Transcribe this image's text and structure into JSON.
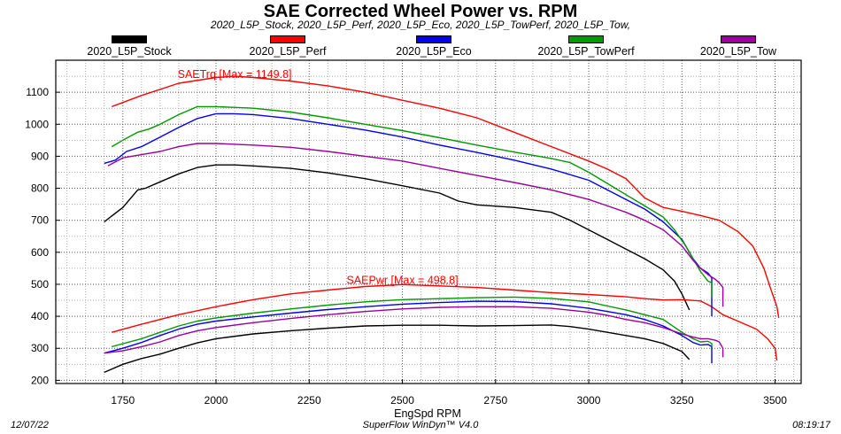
{
  "chart_data": {
    "type": "line",
    "title": "SAE Corrected Wheel Power vs. RPM",
    "subtitle": "2020_L5P_Stock, 2020_L5P_Perf, 2020_L5P_Eco, 2020_L5P_TowPerf, 2020_L5P_Tow,",
    "xlabel": "EngSpd RPM",
    "ylabel": "",
    "xlim": [
      1570,
      3570
    ],
    "ylim": [
      190,
      1200
    ],
    "x_ticks": [
      1750,
      2000,
      2250,
      2500,
      2750,
      3000,
      3250,
      3500
    ],
    "y_ticks": [
      200,
      300,
      400,
      500,
      600,
      700,
      800,
      900,
      1000,
      1100
    ],
    "grid": true,
    "grid_style": "dotted",
    "legend_position": "top",
    "annotations": [
      {
        "text": "SAETrq [Max = 1149.8]",
        "x": 2050,
        "y": 1149.8,
        "color": "#ff0000"
      },
      {
        "text": "SAEPwr [Max = 498.8]",
        "x": 2500,
        "y": 498.8,
        "color": "#ff0000"
      }
    ],
    "series": [
      {
        "name": "2020_L5P_Stock",
        "color": "#000000",
        "torque": [
          [
            1700,
            695
          ],
          [
            1750,
            740
          ],
          [
            1790,
            795
          ],
          [
            1810,
            800
          ],
          [
            1850,
            820
          ],
          [
            1900,
            845
          ],
          [
            1950,
            865
          ],
          [
            2000,
            873
          ],
          [
            2050,
            873
          ],
          [
            2100,
            870
          ],
          [
            2200,
            862
          ],
          [
            2300,
            848
          ],
          [
            2400,
            830
          ],
          [
            2500,
            808
          ],
          [
            2600,
            785
          ],
          [
            2650,
            760
          ],
          [
            2700,
            748
          ],
          [
            2800,
            740
          ],
          [
            2900,
            725
          ],
          [
            2950,
            700
          ],
          [
            3000,
            670
          ],
          [
            3050,
            640
          ],
          [
            3100,
            610
          ],
          [
            3150,
            580
          ],
          [
            3200,
            545
          ],
          [
            3230,
            510
          ],
          [
            3250,
            470
          ],
          [
            3270,
            420
          ]
        ],
        "power": [
          [
            1700,
            225
          ],
          [
            1750,
            250
          ],
          [
            1800,
            268
          ],
          [
            1850,
            282
          ],
          [
            1900,
            300
          ],
          [
            1950,
            317
          ],
          [
            2000,
            330
          ],
          [
            2100,
            345
          ],
          [
            2200,
            355
          ],
          [
            2300,
            363
          ],
          [
            2400,
            370
          ],
          [
            2500,
            372
          ],
          [
            2600,
            372
          ],
          [
            2700,
            370
          ],
          [
            2800,
            371
          ],
          [
            2900,
            373
          ],
          [
            2950,
            368
          ],
          [
            3000,
            360
          ],
          [
            3050,
            350
          ],
          [
            3100,
            340
          ],
          [
            3150,
            330
          ],
          [
            3200,
            315
          ],
          [
            3250,
            290
          ],
          [
            3270,
            265
          ]
        ]
      },
      {
        "name": "2020_L5P_Perf",
        "color": "#ff0000",
        "torque": [
          [
            1720,
            1055
          ],
          [
            1800,
            1090
          ],
          [
            1900,
            1128
          ],
          [
            2000,
            1146
          ],
          [
            2050,
            1150
          ],
          [
            2100,
            1146
          ],
          [
            2200,
            1135
          ],
          [
            2300,
            1120
          ],
          [
            2400,
            1100
          ],
          [
            2500,
            1075
          ],
          [
            2600,
            1050
          ],
          [
            2700,
            1020
          ],
          [
            2800,
            975
          ],
          [
            2900,
            930
          ],
          [
            3000,
            885
          ],
          [
            3050,
            860
          ],
          [
            3100,
            830
          ],
          [
            3150,
            770
          ],
          [
            3200,
            740
          ],
          [
            3250,
            728
          ],
          [
            3300,
            715
          ],
          [
            3350,
            700
          ],
          [
            3400,
            665
          ],
          [
            3440,
            620
          ],
          [
            3470,
            550
          ],
          [
            3490,
            480
          ],
          [
            3505,
            430
          ],
          [
            3510,
            395
          ]
        ],
        "power": [
          [
            1720,
            350
          ],
          [
            1800,
            375
          ],
          [
            1900,
            405
          ],
          [
            2000,
            430
          ],
          [
            2100,
            452
          ],
          [
            2200,
            470
          ],
          [
            2300,
            482
          ],
          [
            2400,
            493
          ],
          [
            2500,
            499
          ],
          [
            2600,
            495
          ],
          [
            2700,
            490
          ],
          [
            2800,
            482
          ],
          [
            2900,
            474
          ],
          [
            3000,
            468
          ],
          [
            3100,
            461
          ],
          [
            3150,
            455
          ],
          [
            3200,
            451
          ],
          [
            3250,
            452
          ],
          [
            3300,
            448
          ],
          [
            3330,
            430
          ],
          [
            3360,
            405
          ],
          [
            3400,
            385
          ],
          [
            3450,
            360
          ],
          [
            3480,
            330
          ],
          [
            3500,
            300
          ],
          [
            3505,
            262
          ]
        ]
      },
      {
        "name": "2020_L5P_Eco",
        "color": "#0000ee",
        "torque": [
          [
            1700,
            878
          ],
          [
            1730,
            888
          ],
          [
            1760,
            915
          ],
          [
            1800,
            930
          ],
          [
            1850,
            960
          ],
          [
            1900,
            990
          ],
          [
            1950,
            1018
          ],
          [
            2000,
            1033
          ],
          [
            2050,
            1033
          ],
          [
            2100,
            1030
          ],
          [
            2200,
            1018
          ],
          [
            2300,
            1000
          ],
          [
            2400,
            982
          ],
          [
            2500,
            960
          ],
          [
            2600,
            935
          ],
          [
            2700,
            912
          ],
          [
            2800,
            888
          ],
          [
            2900,
            860
          ],
          [
            3000,
            825
          ],
          [
            3050,
            795
          ],
          [
            3100,
            765
          ],
          [
            3150,
            735
          ],
          [
            3200,
            695
          ],
          [
            3250,
            640
          ],
          [
            3280,
            580
          ],
          [
            3300,
            550
          ],
          [
            3320,
            535
          ],
          [
            3330,
            520
          ],
          [
            3330,
            400
          ]
        ],
        "power": [
          [
            1700,
            285
          ],
          [
            1750,
            300
          ],
          [
            1800,
            318
          ],
          [
            1850,
            340
          ],
          [
            1900,
            360
          ],
          [
            1950,
            375
          ],
          [
            2000,
            385
          ],
          [
            2100,
            398
          ],
          [
            2200,
            410
          ],
          [
            2300,
            421
          ],
          [
            2400,
            430
          ],
          [
            2500,
            438
          ],
          [
            2600,
            443
          ],
          [
            2700,
            447
          ],
          [
            2800,
            446
          ],
          [
            2900,
            439
          ],
          [
            3000,
            425
          ],
          [
            3050,
            415
          ],
          [
            3100,
            405
          ],
          [
            3150,
            390
          ],
          [
            3200,
            370
          ],
          [
            3250,
            340
          ],
          [
            3280,
            318
          ],
          [
            3300,
            310
          ],
          [
            3320,
            312
          ],
          [
            3330,
            305
          ],
          [
            3330,
            253
          ]
        ]
      },
      {
        "name": "2020_L5P_TowPerf",
        "color": "#009900",
        "torque": [
          [
            1720,
            930
          ],
          [
            1750,
            950
          ],
          [
            1790,
            975
          ],
          [
            1820,
            985
          ],
          [
            1850,
            1000
          ],
          [
            1900,
            1030
          ],
          [
            1950,
            1055
          ],
          [
            2000,
            1055
          ],
          [
            2100,
            1050
          ],
          [
            2200,
            1038
          ],
          [
            2300,
            1020
          ],
          [
            2400,
            1000
          ],
          [
            2500,
            980
          ],
          [
            2600,
            958
          ],
          [
            2700,
            935
          ],
          [
            2800,
            913
          ],
          [
            2900,
            893
          ],
          [
            2950,
            880
          ],
          [
            3000,
            850
          ],
          [
            3050,
            815
          ],
          [
            3100,
            780
          ],
          [
            3150,
            745
          ],
          [
            3200,
            710
          ],
          [
            3230,
            670
          ],
          [
            3260,
            620
          ],
          [
            3280,
            580
          ],
          [
            3300,
            540
          ],
          [
            3320,
            510
          ],
          [
            3330,
            505
          ],
          [
            3330,
            460
          ]
        ],
        "power": [
          [
            1720,
            305
          ],
          [
            1800,
            330
          ],
          [
            1850,
            350
          ],
          [
            1900,
            370
          ],
          [
            1950,
            385
          ],
          [
            2000,
            395
          ],
          [
            2100,
            410
          ],
          [
            2200,
            423
          ],
          [
            2300,
            435
          ],
          [
            2400,
            445
          ],
          [
            2500,
            452
          ],
          [
            2600,
            455
          ],
          [
            2700,
            458
          ],
          [
            2800,
            460
          ],
          [
            2900,
            456
          ],
          [
            3000,
            445
          ],
          [
            3050,
            432
          ],
          [
            3100,
            420
          ],
          [
            3150,
            405
          ],
          [
            3200,
            390
          ],
          [
            3250,
            350
          ],
          [
            3280,
            330
          ],
          [
            3300,
            320
          ],
          [
            3320,
            322
          ],
          [
            3330,
            315
          ],
          [
            3330,
            305
          ]
        ]
      },
      {
        "name": "2020_L5P_Tow",
        "color": "#990099",
        "torque": [
          [
            1710,
            870
          ],
          [
            1750,
            895
          ],
          [
            1800,
            905
          ],
          [
            1850,
            915
          ],
          [
            1900,
            930
          ],
          [
            1950,
            940
          ],
          [
            2000,
            940
          ],
          [
            2100,
            935
          ],
          [
            2200,
            928
          ],
          [
            2300,
            915
          ],
          [
            2400,
            900
          ],
          [
            2500,
            885
          ],
          [
            2600,
            862
          ],
          [
            2700,
            840
          ],
          [
            2800,
            818
          ],
          [
            2900,
            795
          ],
          [
            3000,
            765
          ],
          [
            3050,
            745
          ],
          [
            3100,
            725
          ],
          [
            3150,
            700
          ],
          [
            3200,
            670
          ],
          [
            3250,
            620
          ],
          [
            3280,
            575
          ],
          [
            3300,
            550
          ],
          [
            3320,
            530
          ],
          [
            3340,
            515
          ],
          [
            3350,
            505
          ],
          [
            3360,
            490
          ],
          [
            3360,
            430
          ]
        ],
        "power": [
          [
            1700,
            285
          ],
          [
            1750,
            292
          ],
          [
            1800,
            305
          ],
          [
            1850,
            320
          ],
          [
            1900,
            340
          ],
          [
            1950,
            355
          ],
          [
            2000,
            365
          ],
          [
            2100,
            380
          ],
          [
            2200,
            393
          ],
          [
            2300,
            405
          ],
          [
            2400,
            415
          ],
          [
            2500,
            423
          ],
          [
            2600,
            428
          ],
          [
            2700,
            430
          ],
          [
            2800,
            430
          ],
          [
            2900,
            425
          ],
          [
            3000,
            413
          ],
          [
            3050,
            403
          ],
          [
            3100,
            390
          ],
          [
            3150,
            380
          ],
          [
            3200,
            365
          ],
          [
            3250,
            345
          ],
          [
            3280,
            335
          ],
          [
            3300,
            330
          ],
          [
            3320,
            330
          ],
          [
            3340,
            325
          ],
          [
            3350,
            320
          ],
          [
            3360,
            300
          ],
          [
            3360,
            272
          ]
        ]
      }
    ]
  },
  "footer": {
    "date": "12/07/22",
    "software": "SuperFlow WinDyn™ V4.0",
    "time": "08:19:17"
  }
}
